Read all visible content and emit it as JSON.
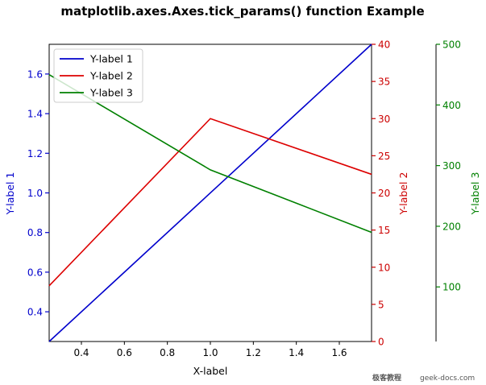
{
  "chart_data": {
    "type": "line",
    "title": "matplotlib.axes.Axes.tick_params() function Example",
    "xlabel": "X-label",
    "xlim": [
      0.25,
      1.75
    ],
    "xticks": [
      "0.4",
      "0.6",
      "0.8",
      "1.0",
      "1.2",
      "1.4",
      "1.6"
    ],
    "axes": [
      {
        "id": "y1",
        "label": "Y-label 1",
        "color": "#0000cc",
        "ylim": [
          0.25,
          1.75
        ],
        "ticks": [
          "0.4",
          "0.6",
          "0.8",
          "1.0",
          "1.2",
          "1.4",
          "1.6"
        ],
        "side": "left"
      },
      {
        "id": "y2",
        "label": "Y-label 2",
        "color": "#cc0000",
        "ylim": [
          0,
          40
        ],
        "ticks": [
          "0",
          "5",
          "10",
          "15",
          "20",
          "25",
          "30",
          "35",
          "40"
        ],
        "side": "right"
      },
      {
        "id": "y3",
        "label": "Y-label 3",
        "color": "#008000",
        "ylim": [
          10,
          500
        ],
        "ticks": [
          "100",
          "200",
          "300",
          "400",
          "500"
        ],
        "side": "right-outer"
      }
    ],
    "series": [
      {
        "name": "Y-label 1",
        "axis": "y1",
        "color": "#0000cc",
        "x": [
          0.25,
          1.75
        ],
        "y": [
          0.25,
          1.75
        ]
      },
      {
        "name": "Y-label 2",
        "axis": "y2",
        "color": "#dd0000",
        "x": [
          0.25,
          1.0,
          1.75
        ],
        "y": [
          7.5,
          30,
          22.5
        ]
      },
      {
        "name": "Y-label 3",
        "axis": "y3",
        "color": "#008000",
        "x": [
          0.25,
          1.0,
          1.75
        ],
        "y": [
          450,
          293,
          190
        ]
      }
    ],
    "legend": {
      "position": "top-left"
    }
  },
  "watermark": {
    "cjk": "极客教程",
    "site": "geek-docs.com"
  }
}
